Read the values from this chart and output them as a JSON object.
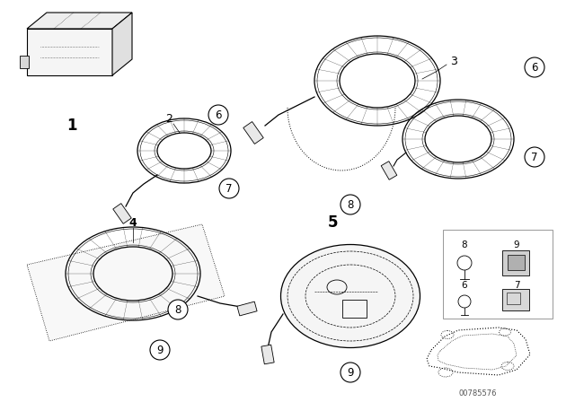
{
  "bg_color": "#ffffff",
  "fig_width": 6.4,
  "fig_height": 4.48,
  "dpi": 100,
  "line_color": "#000000",
  "watermark": "00785576",
  "font_size_label": 9,
  "font_size_number": 10
}
